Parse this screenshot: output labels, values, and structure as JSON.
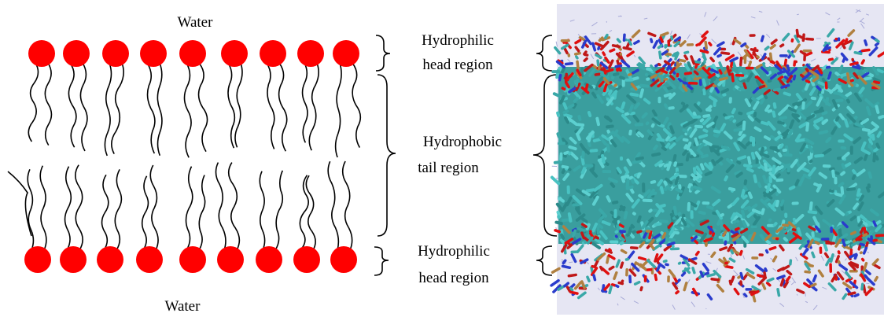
{
  "diagram": {
    "water_top": "Water",
    "water_bottom": "Water",
    "regions": [
      {
        "lines": [
          "Hydrophilic",
          "head region"
        ]
      },
      {
        "lines": [
          "Hydrophobic",
          "tail region"
        ]
      },
      {
        "lines": [
          "Hydrophilic",
          "head region"
        ]
      }
    ]
  }
}
